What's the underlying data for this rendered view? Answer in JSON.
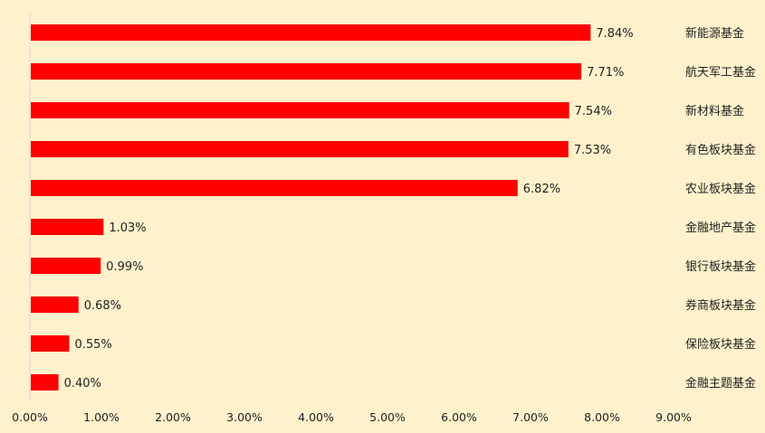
{
  "chart_data": {
    "type": "bar",
    "orientation": "horizontal",
    "title": "",
    "xlabel": "",
    "ylabel": "",
    "xlim": [
      0,
      9
    ],
    "x_ticks": [
      "0.00%",
      "1.00%",
      "2.00%",
      "3.00%",
      "4.00%",
      "5.00%",
      "6.00%",
      "7.00%",
      "8.00%",
      "9.00%"
    ],
    "categories": [
      "新能源基金",
      "航天军工基金",
      "新材料基金",
      "有色板块基金",
      "农业板块基金",
      "金融地产基金",
      "银行板块基金",
      "券商板块基金",
      "保险板块基金",
      "金融主题基金"
    ],
    "values": [
      7.84,
      7.71,
      7.54,
      7.53,
      6.82,
      1.03,
      0.99,
      0.68,
      0.55,
      0.4
    ],
    "value_labels": [
      "7.84%",
      "7.71%",
      "7.54%",
      "7.53%",
      "6.82%",
      "1.03%",
      "0.99%",
      "0.68%",
      "0.55%",
      "0.40%"
    ],
    "category_label_position": "right",
    "grid": false,
    "legend": "none",
    "colors": {
      "background": "#FEF1CC",
      "bar": "#FF0000",
      "axis": "#D9D9D9",
      "text": "#222222"
    }
  }
}
